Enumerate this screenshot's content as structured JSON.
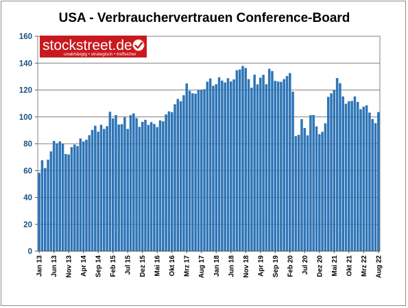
{
  "chart_data": {
    "type": "bar",
    "title": "USA - Verbrauchervertrauen Conference-Board",
    "xlabel": "",
    "ylabel": "",
    "ylim": [
      0,
      160
    ],
    "yticks": [
      "0",
      "20",
      "40",
      "60",
      "80",
      "100",
      "120",
      "140",
      "160"
    ],
    "grid": true,
    "bar_color": "#2e75b6",
    "tick_labels": [
      "Jan 13",
      "Jun 13",
      "Nov 13",
      "Apr 14",
      "Sep 14",
      "Feb 15",
      "Jul 15",
      "Dez 15",
      "Mai 16",
      "Okt 16",
      "Mrz 17",
      "Aug 17",
      "Jan 18",
      "Jun 18",
      "Nov 18",
      "Apr 19",
      "Sep 19",
      "Feb 20",
      "Jul 20",
      "Dez 20",
      "Mai 21",
      "Okt 21",
      "Mrz 22",
      "Aug 22"
    ],
    "values": [
      58.4,
      67.7,
      61.9,
      68.1,
      74.3,
      82.1,
      80.3,
      81.8,
      80.2,
      72.4,
      72.0,
      77.5,
      79.4,
      78.3,
      83.9,
      81.7,
      83.0,
      86.4,
      90.3,
      93.4,
      89.0,
      94.1,
      91.0,
      93.1,
      103.8,
      98.8,
      101.3,
      94.3,
      94.6,
      99.8,
      91.0,
      101.3,
      102.6,
      99.1,
      92.6,
      96.3,
      97.8,
      94.0,
      96.1,
      94.7,
      92.4,
      97.4,
      96.7,
      101.8,
      104.1,
      103.5,
      109.4,
      113.3,
      111.6,
      116.1,
      124.9,
      119.4,
      117.6,
      117.3,
      120.0,
      120.3,
      120.6,
      126.2,
      128.6,
      123.1,
      124.3,
      129.5,
      127.0,
      125.6,
      128.8,
      126.4,
      127.9,
      134.7,
      135.3,
      137.9,
      136.4,
      128.1,
      121.7,
      131.4,
      124.2,
      129.2,
      131.3,
      124.3,
      135.8,
      134.1,
      126.8,
      126.3,
      126.1,
      128.1,
      130.4,
      132.6,
      118.8,
      85.7,
      86.6,
      98.3,
      91.7,
      86.3,
      101.3,
      101.4,
      92.9,
      87.1,
      88.9,
      95.2,
      114.9,
      117.5,
      120.0,
      128.9,
      125.1,
      115.2,
      109.8,
      111.6,
      111.9,
      115.2,
      111.1,
      105.7,
      107.6,
      108.6,
      103.2,
      98.4,
      95.3,
      103.6
    ],
    "logo": {
      "text": "stockstreet.de",
      "tagline": "unabhängig • strategisch • treffsicher",
      "color": "#c8191e"
    }
  }
}
